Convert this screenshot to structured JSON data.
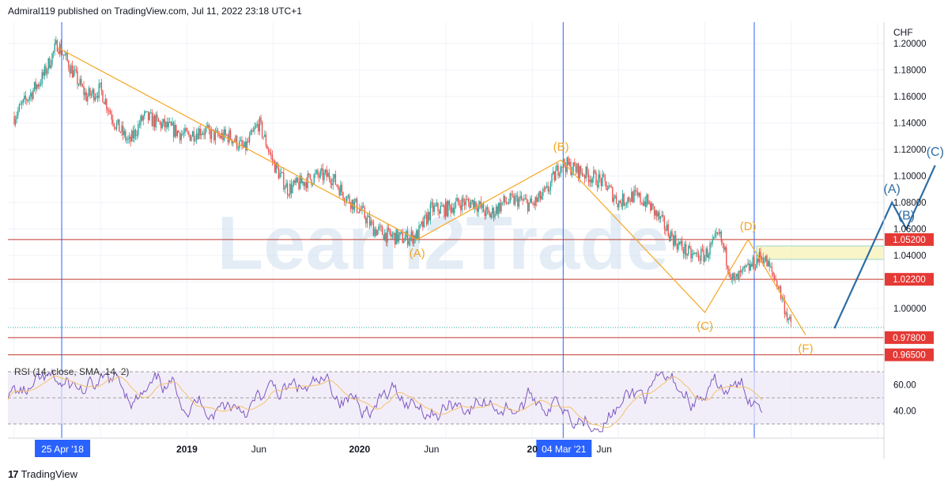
{
  "header": {
    "text": "Admiral119 published on TradingView.com, Jul 11, 2022 23:18 UTC+1"
  },
  "footer": {
    "logo": "17",
    "brand": "TradingView"
  },
  "watermark": "Learn2Trade",
  "colors": {
    "candle_up": "#26a69a",
    "candle_down": "#ef5350",
    "trend": "#f5a623",
    "forecast": "#2e6da4",
    "level": "#c0392b",
    "rsi_line": "#7e57c2",
    "rsi_ma": "#f5c16c",
    "vline": "#2962ff"
  },
  "chart_data": {
    "type": "line",
    "title": "",
    "y_axis_unit": "CHF",
    "ylim": [
      0.965,
      1.2
    ],
    "yticks": [
      "1.20000",
      "1.18000",
      "1.16000",
      "1.14000",
      "1.12000",
      "1.10000",
      "1.08000",
      "1.06000",
      "1.04000",
      "1.00000"
    ],
    "price_labels": [
      "1.05200",
      "1.02200",
      "0.97800",
      "0.96500"
    ],
    "horizontal_levels": [
      1.052,
      1.022,
      0.978,
      0.965
    ],
    "xtick_labels": [
      "2019",
      "Jun",
      "2020",
      "Jun",
      "20",
      "Jun"
    ],
    "highlighted_dates": [
      "25 Apr '18",
      "04 Mar '21"
    ],
    "series": [
      {
        "points": [
          [
            "2018-01",
            1.145
          ],
          [
            "2018-02",
            1.16
          ],
          [
            "2018-03",
            1.175
          ],
          [
            "2018-04",
            1.2
          ],
          [
            "2018-05",
            1.18
          ],
          [
            "2018-06",
            1.16
          ],
          [
            "2018-07",
            1.165
          ],
          [
            "2018-08",
            1.14
          ],
          [
            "2018-09",
            1.125
          ],
          [
            "2018-10",
            1.145
          ],
          [
            "2018-11",
            1.14
          ],
          [
            "2018-12",
            1.135
          ],
          [
            "2019-01",
            1.13
          ],
          [
            "2019-02",
            1.135
          ],
          [
            "2019-03",
            1.13
          ],
          [
            "2019-04",
            1.13
          ],
          [
            "2019-05",
            1.12
          ],
          [
            "2019-06",
            1.14
          ],
          [
            "2019-07",
            1.11
          ],
          [
            "2019-08",
            1.09
          ],
          [
            "2019-09",
            1.095
          ],
          [
            "2019-10",
            1.1
          ],
          [
            "2019-11",
            1.1
          ],
          [
            "2019-12",
            1.085
          ],
          [
            "2020-01",
            1.075
          ],
          [
            "2020-02",
            1.06
          ],
          [
            "2020-03",
            1.055
          ],
          [
            "2020-04",
            1.053
          ],
          [
            "2020-05",
            1.055
          ],
          [
            "2020-06",
            1.075
          ],
          [
            "2020-07",
            1.075
          ],
          [
            "2020-08",
            1.08
          ],
          [
            "2020-09",
            1.08
          ],
          [
            "2020-10",
            1.07
          ],
          [
            "2020-11",
            1.08
          ],
          [
            "2020-12",
            1.082
          ],
          [
            "2021-01",
            1.078
          ],
          [
            "2021-02",
            1.088
          ],
          [
            "2021-03",
            1.11
          ],
          [
            "2021-04",
            1.105
          ],
          [
            "2021-05",
            1.1
          ],
          [
            "2021-06",
            1.095
          ],
          [
            "2021-07",
            1.08
          ],
          [
            "2021-08",
            1.085
          ],
          [
            "2021-09",
            1.08
          ],
          [
            "2021-10",
            1.065
          ],
          [
            "2021-11",
            1.05
          ],
          [
            "2021-12",
            1.04
          ],
          [
            "2022-01",
            1.04
          ],
          [
            "2022-02",
            1.055
          ],
          [
            "2022-03",
            1.02
          ],
          [
            "2022-04",
            1.03
          ],
          [
            "2022-05",
            1.04
          ],
          [
            "2022-06",
            1.02
          ],
          [
            "2022-07",
            0.985
          ]
        ]
      }
    ],
    "elliott_orange": [
      {
        "label": "",
        "t": "2018-04",
        "v": 1.197
      },
      {
        "label": "(A)",
        "t": "2020-05",
        "v": 1.052
      },
      {
        "label": "(B)",
        "t": "2021-03",
        "v": 1.112
      },
      {
        "label": "(C)",
        "t": "2022-01",
        "v": 0.997
      },
      {
        "label": "(D)",
        "t": "2022-04",
        "v": 1.052
      },
      {
        "label": "(F)",
        "t": "2022-08",
        "v": 0.98
      }
    ],
    "elliott_blue": [
      {
        "label": "",
        "t": "2022-10",
        "v": 0.985
      },
      {
        "label": "(A)",
        "t": "2023-02",
        "v": 1.08
      },
      {
        "label": "(B)",
        "t": "2023-03",
        "v": 1.06
      },
      {
        "label": "(C)",
        "t": "2023-05",
        "v": 1.108
      }
    ],
    "rsi": {
      "label": "RSI (14, close, SMA, 14, 2)",
      "yticks": [
        "60.00",
        "40.00"
      ],
      "levels": [
        70,
        50,
        30
      ]
    }
  }
}
